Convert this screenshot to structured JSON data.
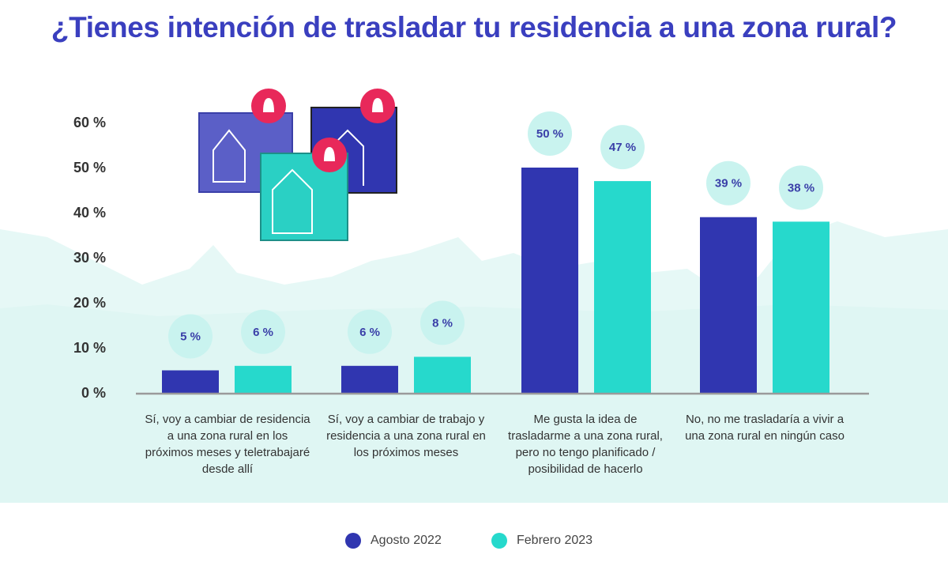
{
  "title": "¿Tienes intención de trasladar tu residencia a una zona rural?",
  "chart_data": {
    "type": "bar",
    "title": "¿Tienes intención de trasladar tu residencia a una zona rural?",
    "categories": [
      "Sí, voy a cambiar de residencia a una zona rural en los próximos meses y teletrabajaré desde allí",
      "Sí, voy a cambiar de trabajo y residencia a una zona rural en los próximos meses",
      "Me gusta la idea de trasladarme a una zona rural, pero no tengo planificado / posibilidad de hacerlo",
      "No, no me trasladaría a vivir a una zona rural en ningún caso"
    ],
    "series": [
      {
        "name": "Agosto 2022",
        "color": "#3036b0",
        "values": [
          5,
          6,
          50,
          39
        ],
        "labels": [
          "5 %",
          "6 %",
          "50 %",
          "39 %"
        ]
      },
      {
        "name": "Febrero 2023",
        "color": "#26d9cc",
        "values": [
          6,
          8,
          47,
          38
        ],
        "labels": [
          "6 %",
          "8 %",
          "47 %",
          "38 %"
        ]
      }
    ],
    "yticks": [
      "0 %",
      "10 %",
      "20 %",
      "30 %",
      "40 %",
      "50 %",
      "60 %"
    ],
    "ylim": [
      0,
      60
    ],
    "grid": false,
    "legend": "bottom"
  }
}
